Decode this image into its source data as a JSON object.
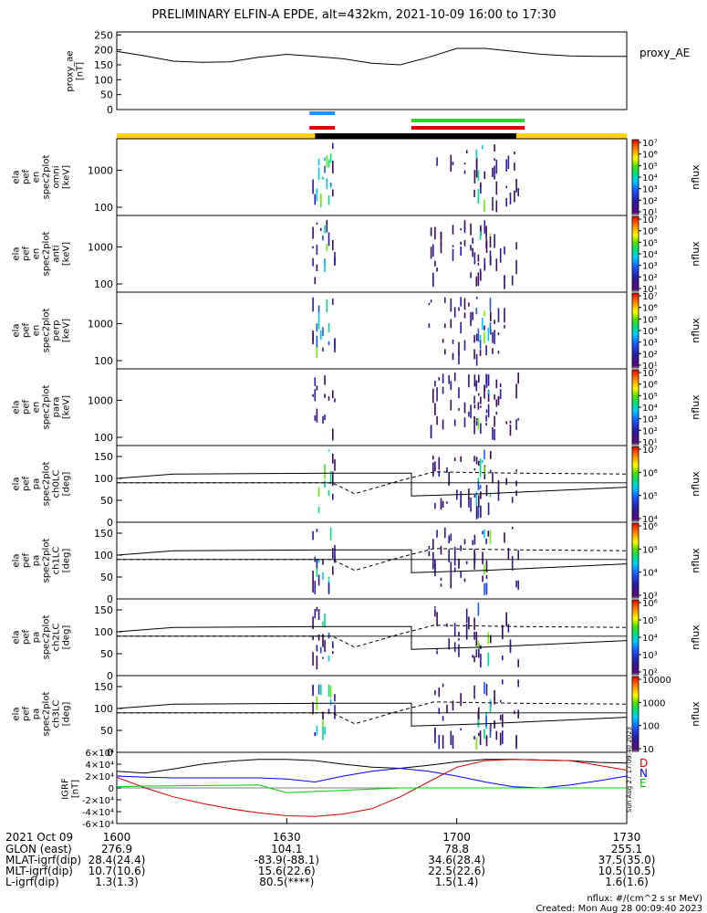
{
  "title": "PRELIMINARY ELFIN-A EPDE, alt=432km, 2021-10-09 16:00 to 17:30",
  "colors": {
    "yellow_bar": "#ffd400",
    "black_bar": "#000000",
    "blue_bar": "#1e90ff",
    "red_bar": "#e00000",
    "green_bar": "#22dd22",
    "igrf_black": "#000000",
    "igrf_blue": "#0000ff",
    "igrf_red": "#cc0000",
    "igrf_green": "#00cc00"
  },
  "chart_data": [
    {
      "type": "line",
      "name_label": "proxy_AE",
      "ylabel_lines": [
        "proxy_ae",
        "[nT]"
      ],
      "yticks": [
        "0",
        "50",
        "100",
        "150",
        "200",
        "250"
      ],
      "ylim": [
        0,
        260
      ],
      "x": [
        0,
        5,
        10,
        15,
        20,
        25,
        30,
        35,
        40,
        45,
        50,
        55,
        60,
        65,
        70,
        75,
        80,
        85,
        90
      ],
      "values": [
        195,
        180,
        162,
        158,
        160,
        175,
        185,
        178,
        170,
        155,
        150,
        175,
        205,
        205,
        195,
        185,
        180,
        178,
        178
      ]
    },
    {
      "type": "heatmap",
      "ylabel_lines": [
        "ela",
        "pef",
        "en",
        "spec2plot",
        "omni",
        "[keV]"
      ],
      "yticks": [
        "100",
        "1000"
      ],
      "colorbar_ticks": [
        "10⁷",
        "10⁶",
        "10⁵",
        "10⁴",
        "10³",
        "10²",
        "10¹"
      ],
      "colorbar_label": "nflux"
    },
    {
      "type": "heatmap",
      "ylabel_lines": [
        "ela",
        "pef",
        "en",
        "spec2plot",
        "anti",
        "[keV]"
      ],
      "yticks": [
        "100",
        "1000"
      ],
      "colorbar_ticks": [
        "10⁷",
        "10⁶",
        "10⁵",
        "10⁴",
        "10³",
        "10²",
        "10¹"
      ],
      "colorbar_label": "nflux"
    },
    {
      "type": "heatmap",
      "ylabel_lines": [
        "ela",
        "pef",
        "en",
        "spec2plot",
        "perp",
        "[keV]"
      ],
      "yticks": [
        "100",
        "1000"
      ],
      "colorbar_ticks": [
        "10⁷",
        "10⁶",
        "10⁵",
        "10⁴",
        "10³",
        "10²",
        "10¹"
      ],
      "colorbar_label": "nflux"
    },
    {
      "type": "heatmap",
      "ylabel_lines": [
        "ela",
        "pef",
        "en",
        "spec2plot",
        "para",
        "[keV]"
      ],
      "yticks": [
        "100",
        "1000"
      ],
      "colorbar_ticks": [
        "10⁷",
        "10⁶",
        "10⁵",
        "10⁴",
        "10³",
        "10²",
        "10¹"
      ],
      "colorbar_label": "nflux"
    },
    {
      "type": "heatmap",
      "ylabel_lines": [
        "ela",
        "pef",
        "pa",
        "spec2plot",
        "ch0LC",
        "[deg]"
      ],
      "yticks": [
        "0",
        "50",
        "100",
        "150"
      ],
      "colorbar_ticks": [
        "10⁷",
        "10⁶",
        "10⁵",
        "10⁴"
      ],
      "colorbar_label": "nflux"
    },
    {
      "type": "heatmap",
      "ylabel_lines": [
        "ela",
        "pef",
        "pa",
        "spec2plot",
        "ch1LC",
        "[deg]"
      ],
      "yticks": [
        "0",
        "50",
        "100",
        "150"
      ],
      "colorbar_ticks": [
        "10⁶",
        "10⁵",
        "10⁴",
        "10³"
      ],
      "colorbar_label": "nflux"
    },
    {
      "type": "heatmap",
      "ylabel_lines": [
        "ela",
        "pef",
        "pa",
        "spec2plot",
        "ch2LC",
        "[deg]"
      ],
      "yticks": [
        "0",
        "50",
        "100",
        "150"
      ],
      "colorbar_ticks": [
        "10⁶",
        "10⁵",
        "10⁴",
        "10³",
        "10²"
      ],
      "colorbar_label": "nflux"
    },
    {
      "type": "heatmap",
      "ylabel_lines": [
        "ela",
        "pef",
        "pa",
        "spec2plot",
        "ch3LC",
        "[deg]"
      ],
      "yticks": [
        "0",
        "50",
        "100",
        "150"
      ],
      "colorbar_ticks": [
        "10000",
        "1000",
        "100",
        "10"
      ],
      "colorbar_label": "nflux"
    },
    {
      "type": "line",
      "ylabel_lines": [
        "IGRF",
        "[nT]"
      ],
      "yticks": [
        "-6×10⁴",
        "-4×10⁴",
        "-2×10⁴",
        "0",
        "2×10⁴",
        "4×10⁴",
        "6×10⁴"
      ],
      "ylim": [
        -60000,
        60000
      ],
      "legend": [
        "D",
        "N",
        "E"
      ],
      "x": [
        0,
        5,
        10,
        15,
        20,
        25,
        30,
        35,
        40,
        45,
        50,
        55,
        60,
        65,
        70,
        75,
        80,
        85,
        90
      ],
      "series": [
        {
          "values": [
            28000,
            25000,
            32000,
            40000,
            45000,
            48000,
            48000,
            46000,
            40000,
            35000,
            33000,
            38000,
            44000,
            48000,
            48000,
            47000,
            46000,
            43000,
            42000
          ]
        },
        {
          "values": [
            20000,
            18000,
            17000,
            17000,
            17000,
            17000,
            15000,
            10000,
            20000,
            28000,
            33000,
            28000,
            20000,
            10000,
            2000,
            0,
            5000,
            12000,
            20000
          ]
        },
        {
          "values": [
            18000,
            0,
            -15000,
            -26000,
            -35000,
            -42000,
            -47000,
            -48000,
            -44000,
            -35000,
            -15000,
            10000,
            35000,
            46000,
            48000,
            47000,
            46000,
            38000,
            30000
          ]
        },
        {
          "values": [
            2000,
            3000,
            3500,
            4000,
            4500,
            5000,
            -8000,
            -6000,
            -4000,
            -2000,
            0,
            0,
            0,
            0,
            0,
            0,
            0,
            0,
            0
          ]
        }
      ]
    }
  ],
  "side_stamp": "Sun Aug 27 17:09:40 2023",
  "xaxis": {
    "row_labels": [
      "2021 Oct 09",
      "GLON (east)",
      "MLAT-igrf(dip)",
      "MLT-igrf(dip)",
      "L-igrf(dip)"
    ],
    "columns": [
      {
        "values": [
          "1600",
          "276.9",
          "28.4(24.4)",
          "10.7(10.6)",
          "1.3(1.3)"
        ]
      },
      {
        "values": [
          "1630",
          "104.1",
          "-83.9(-88.1)",
          "15.6(22.6)",
          "80.5(****)"
        ]
      },
      {
        "values": [
          "1700",
          "78.8",
          "34.6(28.4)",
          "22.5(22.6)",
          "1.5(1.4)"
        ]
      },
      {
        "values": [
          "1730",
          "255.1",
          "37.5(35.0)",
          "10.5(10.5)",
          "1.6(1.6)"
        ]
      }
    ]
  },
  "footer": {
    "units": "nflux: #/(cm^2 s sr MeV)",
    "created": "Created: Mon Aug 28 00:09:40 2023"
  }
}
